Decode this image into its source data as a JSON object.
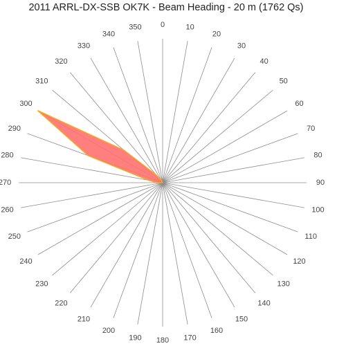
{
  "chart_data": {
    "type": "radar",
    "title": "2011 ARRL-DX-SSB OK7K - Beam Heading - 20 m (1762 Qs)",
    "angular_axis": {
      "unit": "degrees",
      "ticks": [
        "0",
        "10",
        "20",
        "30",
        "40",
        "50",
        "60",
        "70",
        "80",
        "90",
        "100",
        "110",
        "120",
        "130",
        "140",
        "150",
        "160",
        "170",
        "180",
        "190",
        "200",
        "210",
        "220",
        "230",
        "240",
        "250",
        "260",
        "270",
        "280",
        "290",
        "300",
        "310",
        "320",
        "330",
        "340",
        "350"
      ]
    },
    "radial_max": 1,
    "grid": true,
    "series": [
      {
        "values": [
          0,
          0,
          0,
          0,
          0,
          0,
          0,
          0,
          0,
          0,
          0,
          0,
          0,
          0,
          0,
          0,
          0,
          0,
          0,
          0,
          0,
          0,
          0,
          0,
          0,
          0,
          0,
          0.04,
          0.1,
          0.55,
          1.0,
          0.35,
          0.07,
          0.02,
          0,
          0
        ],
        "color": "#ff7070",
        "border_color": "#f5a623"
      }
    ]
  }
}
